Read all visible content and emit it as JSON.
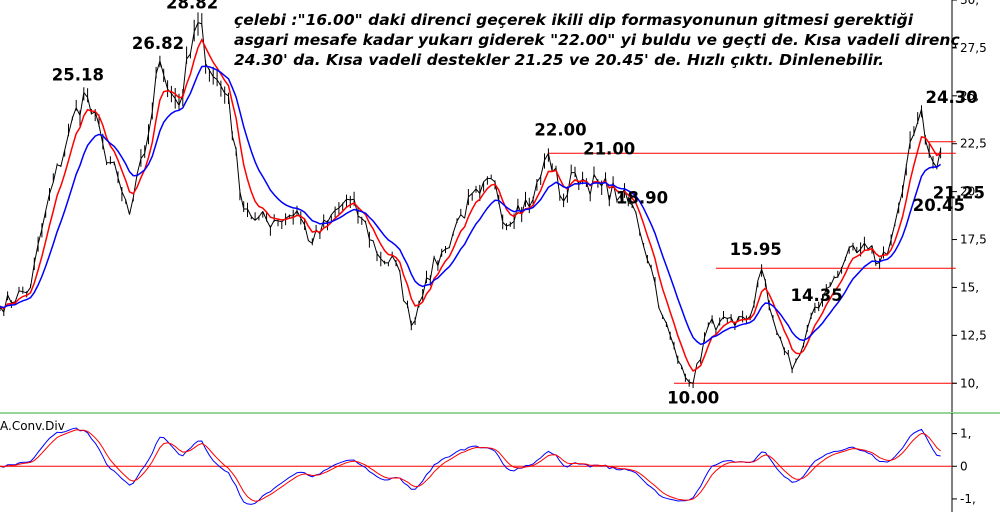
{
  "comment": {
    "lines": [
      "çelebi :\"16.00\" daki direnci geçerek ikili dip formasyonunun gitmesi gerektiği",
      "asgari mesafe kadar yukarı giderek \"22.00\" yi buldu ve geçti de. Kısa vadeli direnç",
      "24.30' da. Kısa vadeli destekler 21.25 ve 20.45' de. Hızlı çıktı. Dinlenebilir."
    ]
  },
  "chart_data": [
    {
      "type": "line",
      "title": "",
      "ylim": [
        8.5,
        30
      ],
      "y_ticks": [
        "30,",
        "27,5",
        "25,",
        "22,5",
        "20,",
        "17,5",
        "15,",
        "12,5",
        "10,"
      ],
      "y_tick_values": [
        30,
        27.5,
        25,
        22.5,
        20,
        17.5,
        15,
        12.5,
        10
      ],
      "grid": false,
      "colors": {
        "price": "#000000",
        "fast_ma": "#ff0000",
        "slow_ma": "#0000ff",
        "levels": "#ff0000"
      },
      "price_anchors": [
        [
          0,
          14
        ],
        [
          8,
          15
        ],
        [
          12,
          19
        ],
        [
          18,
          23
        ],
        [
          22,
          25.18
        ],
        [
          27,
          22.5
        ],
        [
          32,
          20
        ],
        [
          34,
          18.8
        ],
        [
          38,
          22
        ],
        [
          42,
          26.82
        ],
        [
          47,
          24.5
        ],
        [
          52,
          28.82
        ],
        [
          56,
          26
        ],
        [
          60,
          25
        ],
        [
          63,
          20
        ],
        [
          67,
          18.5
        ],
        [
          72,
          18.5
        ],
        [
          78,
          19
        ],
        [
          82,
          17.3
        ],
        [
          86,
          18.4
        ],
        [
          91,
          19.6
        ],
        [
          95,
          18.6
        ],
        [
          100,
          16.5
        ],
        [
          104,
          16.3
        ],
        [
          108,
          13
        ],
        [
          112,
          15.5
        ],
        [
          117,
          17
        ],
        [
          121,
          18.8
        ],
        [
          126,
          19.9
        ],
        [
          130,
          20.5
        ],
        [
          133,
          18.2
        ],
        [
          136,
          19.3
        ],
        [
          140,
          19.6
        ],
        [
          144,
          22
        ],
        [
          148,
          19.5
        ],
        [
          151,
          21
        ],
        [
          154,
          20.5
        ],
        [
          158,
          20.3
        ],
        [
          163,
          19.8
        ],
        [
          167,
          18.9
        ],
        [
          171,
          16
        ],
        [
          174,
          13.5
        ],
        [
          178,
          11.2
        ],
        [
          182,
          10
        ],
        [
          186,
          13
        ],
        [
          189,
          13.2
        ],
        [
          193,
          13
        ],
        [
          197,
          13.5
        ],
        [
          200,
          15.95
        ],
        [
          202,
          14
        ],
        [
          205,
          12.3
        ],
        [
          208,
          10.7
        ],
        [
          211,
          12
        ],
        [
          213,
          13.5
        ],
        [
          216,
          14.35
        ],
        [
          219,
          15.5
        ],
        [
          222,
          16.5
        ],
        [
          225,
          16.8
        ],
        [
          228,
          17
        ],
        [
          231,
          16.3
        ],
        [
          234,
          17.5
        ],
        [
          237,
          20
        ],
        [
          240,
          23
        ],
        [
          242,
          24.3
        ],
        [
          244,
          22
        ],
        [
          246,
          21.25
        ],
        [
          247,
          22.2
        ]
      ],
      "series": [
        {
          "name": "",
          "values_ref": "price_anchors"
        }
      ],
      "levels": [
        {
          "y": 22.0,
          "x_from": 144,
          "x_to": 251
        },
        {
          "y": 22.6,
          "x_from": 244,
          "x_to": 251
        },
        {
          "y": 16.0,
          "x_from": 188,
          "x_to": 251
        },
        {
          "y": 10.0,
          "x_from": 177,
          "x_to": 251
        }
      ],
      "annotations": [
        {
          "text": "25.18",
          "x": 22,
          "y": 25.18
        },
        {
          "text": "26.82",
          "x": 42,
          "y": 26.82
        },
        {
          "text": "28.82",
          "x": 52,
          "y": 28.82
        },
        {
          "text": "22.00",
          "x": 144,
          "y": 22.0
        },
        {
          "text": "21.00",
          "x": 161,
          "y": 21.0
        },
        {
          "text": "18.90",
          "x": 167,
          "y": 18.9
        },
        {
          "text": "15.95",
          "x": 200,
          "y": 15.95
        },
        {
          "text": "14.35",
          "x": 216,
          "y": 14.35
        },
        {
          "text": "10.00",
          "x": 182,
          "y": 10.0
        },
        {
          "text": "24.30",
          "x": 242,
          "y": 24.3
        },
        {
          "text": "21.25",
          "x": 246,
          "y": 21.25
        },
        {
          "text": "20.45",
          "x": 246,
          "y": 20.45
        }
      ]
    },
    {
      "type": "line",
      "title": "A.Conv.Div",
      "ylim": [
        -1.4,
        1.6
      ],
      "y_ticks": [
        "1,",
        "0",
        "-1,"
      ],
      "y_tick_values": [
        1,
        0,
        -1
      ],
      "zero_line": 0,
      "colors": {
        "macd": "#0000ff",
        "signal": "#ff0000",
        "zero": "#ff0000"
      }
    }
  ]
}
